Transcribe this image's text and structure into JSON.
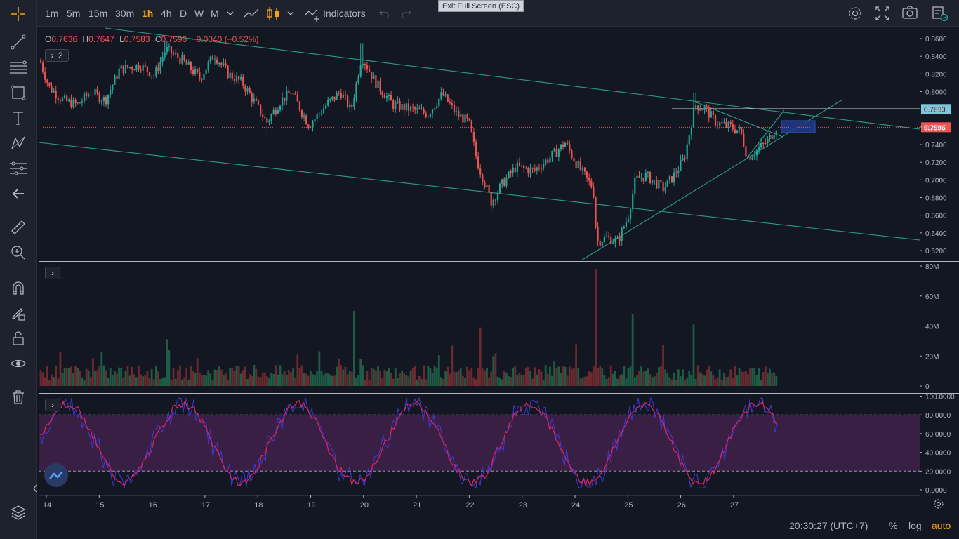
{
  "toolbar": {
    "intervals": [
      "1m",
      "5m",
      "15m",
      "30m",
      "1h",
      "4h",
      "D",
      "W",
      "M"
    ],
    "active_interval": "1h",
    "indicators_label": "Indicators",
    "exit_fullscreen_tooltip": "Exit Full Screen (ESC)",
    "icons": [
      "more-intervals-chevron-icon",
      "line-chart-type-icon",
      "candles-chart-type-icon",
      "chart-type-chevron-icon",
      "indicators-icon",
      "undo-icon",
      "redo-icon",
      "settings-gear-icon",
      "fullscreen-icon",
      "camera-snapshot-icon",
      "publish-idea-icon"
    ]
  },
  "drawing_tools": [
    "crosshair-icon",
    "trendline-icon",
    "fib-retracement-icon",
    "rectangle-icon",
    "text-icon",
    "pattern-icon",
    "forecast-icon",
    "back-arrow-icon",
    "ruler-icon",
    "zoom-in-icon",
    "magnet-icon",
    "stay-in-drawing-mode-icon",
    "lock-icon",
    "eye-icon",
    "trash-icon",
    "object-tree-icon"
  ],
  "legend": {
    "o_label": "O",
    "o_value": "0.7636",
    "h_label": "H",
    "h_value": "0.7647",
    "l_label": "L",
    "l_value": "0.7583",
    "c_label": "C",
    "c_value": "0.7596",
    "change": "−0.0040 (−0.52%)",
    "indicators_count": "2"
  },
  "price_axis": {
    "labels": [
      "0.8600",
      "0.8400",
      "0.8200",
      "0.8000",
      "0.7800",
      "0.7600",
      "0.7400",
      "0.7200",
      "0.7000",
      "0.6800",
      "0.6600",
      "0.6400",
      "0.6200"
    ],
    "marker_level": "0.7803",
    "last_price": "0.7596"
  },
  "volume_axis": {
    "labels": [
      "80M",
      "60M",
      "40M",
      "20M",
      "0"
    ]
  },
  "rsi_axis": {
    "labels": [
      "100.0000",
      "80.0000",
      "60.0000",
      "40.0000",
      "20.0000",
      "0.0000"
    ]
  },
  "time_axis": {
    "labels": [
      "14",
      "15",
      "16",
      "17",
      "18",
      "19",
      "20",
      "21",
      "22",
      "23",
      "24",
      "25",
      "26",
      "27"
    ]
  },
  "bottom_bar": {
    "time": "20:30:27 (UTC+7)",
    "percent": "%",
    "log": "log",
    "auto": "auto"
  },
  "colors": {
    "bg": "#131722",
    "up": "#26a69a",
    "down": "#ef5350",
    "trendline": "#2b9c8a",
    "last_price_line": "#ef5350",
    "marker_bg": "#7ec6dc",
    "rsi_band": "#3a1f45",
    "rsi_line": "#e0245e",
    "rsi_line2": "#3b3bd9",
    "active_tab": "#f6a316",
    "highlight_box": "#1f3b8c"
  }
}
